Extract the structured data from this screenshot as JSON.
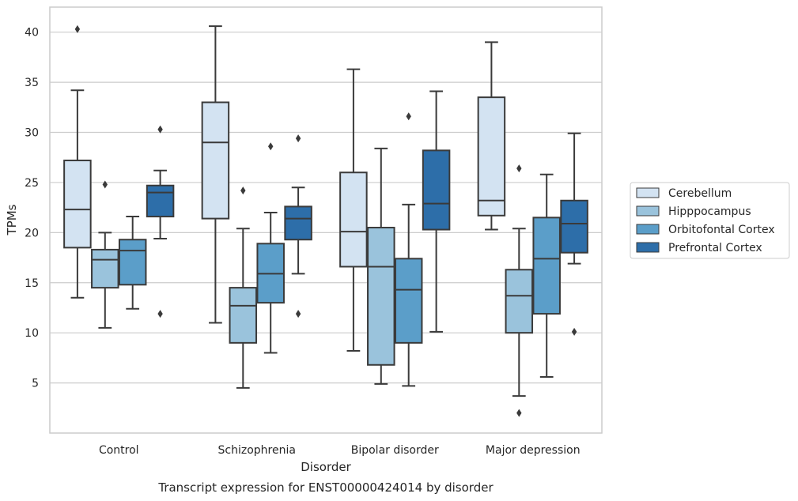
{
  "caption": "Transcript expression for ENST00000424014 by disorder",
  "chart_data": {
    "type": "boxplot",
    "xlabel": "Disorder",
    "ylabel": "TPMs",
    "ylim": [
      0,
      42.5
    ],
    "yticks": [
      5,
      10,
      15,
      20,
      25,
      30,
      35,
      40
    ],
    "grid": true,
    "legend_position": "right",
    "categories": [
      "Control",
      "Schizophrenia",
      "Bipolar disorder",
      "Major depression"
    ],
    "series": [
      {
        "name": "Cerebellum",
        "color": "#d3e3f2",
        "boxes": [
          {
            "whislo": 13.5,
            "q1": 18.5,
            "med": 22.3,
            "q3": 27.2,
            "whishi": 34.2,
            "fliers": [
              40.3
            ]
          },
          {
            "whislo": 11.0,
            "q1": 21.4,
            "med": 29.0,
            "q3": 33.0,
            "whishi": 40.6,
            "fliers": []
          },
          {
            "whislo": 8.2,
            "q1": 16.6,
            "med": 20.1,
            "q3": 26.0,
            "whishi": 36.3,
            "fliers": []
          },
          {
            "whislo": 20.3,
            "q1": 21.7,
            "med": 23.2,
            "q3": 33.5,
            "whishi": 39.0,
            "fliers": []
          }
        ]
      },
      {
        "name": "Hipppocampus",
        "color": "#9ac3dc",
        "boxes": [
          {
            "whislo": 10.5,
            "q1": 14.5,
            "med": 17.3,
            "q3": 18.3,
            "whishi": 20.0,
            "fliers": [
              24.8
            ]
          },
          {
            "whislo": 4.5,
            "q1": 9.0,
            "med": 12.7,
            "q3": 14.5,
            "whishi": 20.4,
            "fliers": [
              24.2
            ]
          },
          {
            "whislo": 4.9,
            "q1": 6.8,
            "med": 16.6,
            "q3": 20.5,
            "whishi": 28.4,
            "fliers": []
          },
          {
            "whislo": 3.7,
            "q1": 10.0,
            "med": 13.7,
            "q3": 16.3,
            "whishi": 20.4,
            "fliers": [
              2.0,
              26.4
            ]
          }
        ]
      },
      {
        "name": "Orbitofontal Cortex",
        "color": "#5b9ec9",
        "boxes": [
          {
            "whislo": 12.4,
            "q1": 14.8,
            "med": 18.2,
            "q3": 19.3,
            "whishi": 21.6,
            "fliers": []
          },
          {
            "whislo": 8.0,
            "q1": 13.0,
            "med": 15.9,
            "q3": 18.9,
            "whishi": 22.0,
            "fliers": [
              28.6
            ]
          },
          {
            "whislo": 4.7,
            "q1": 9.0,
            "med": 14.3,
            "q3": 17.4,
            "whishi": 22.8,
            "fliers": [
              31.6
            ]
          },
          {
            "whislo": 5.6,
            "q1": 11.9,
            "med": 17.4,
            "q3": 21.5,
            "whishi": 25.8,
            "fliers": []
          }
        ]
      },
      {
        "name": "Prefrontal Cortex",
        "color": "#2d6ea9",
        "boxes": [
          {
            "whislo": 19.4,
            "q1": 21.6,
            "med": 24.0,
            "q3": 24.7,
            "whishi": 26.2,
            "fliers": [
              11.9,
              30.3
            ]
          },
          {
            "whislo": 15.9,
            "q1": 19.3,
            "med": 21.4,
            "q3": 22.6,
            "whishi": 24.5,
            "fliers": [
              11.9,
              29.4
            ]
          },
          {
            "whislo": 10.1,
            "q1": 20.3,
            "med": 22.9,
            "q3": 28.2,
            "whishi": 34.1,
            "fliers": []
          },
          {
            "whislo": 16.9,
            "q1": 18.0,
            "med": 20.9,
            "q3": 23.2,
            "whishi": 29.9,
            "fliers": [
              10.1
            ]
          }
        ]
      }
    ]
  }
}
